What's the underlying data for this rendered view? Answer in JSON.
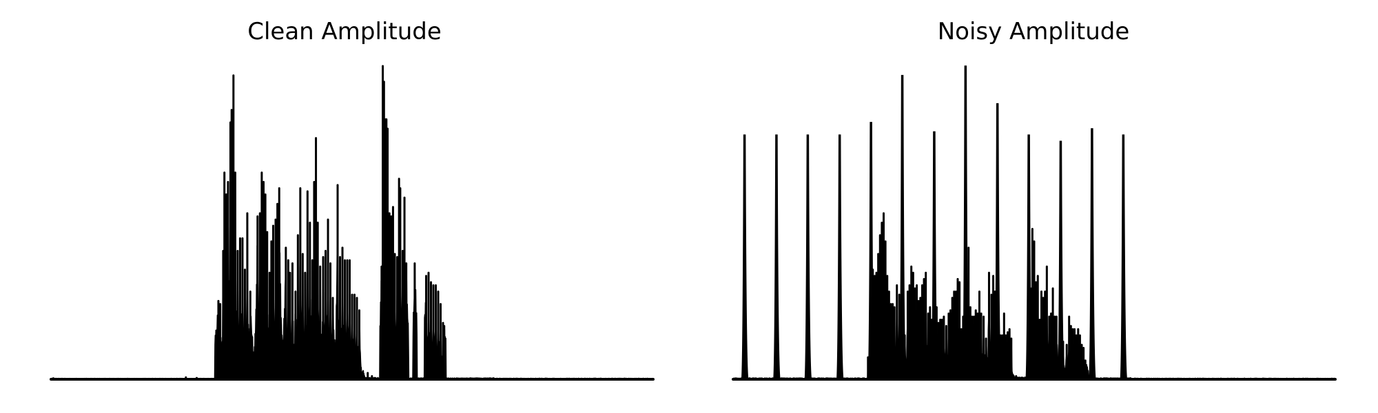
{
  "colors": {
    "line": "#000000",
    "background": "#ffffff"
  },
  "chart_data": [
    {
      "type": "line",
      "title": "Clean Amplitude",
      "xlabel": "",
      "ylabel": "",
      "axes_visible": false,
      "grid": false,
      "xlim": [
        0,
        1000
      ],
      "ylim": [
        0,
        1.0
      ],
      "series": [
        {
          "peaks": [
            [
              4,
              0.003
            ],
            [
              224,
              0.006
            ],
            [
              242,
              0.004
            ],
            [
              278,
              0.25
            ],
            [
              281,
              0.24
            ],
            [
              286,
              0.41
            ],
            [
              288,
              0.66
            ],
            [
              291,
              0.59
            ],
            [
              294,
              0.63
            ],
            [
              298,
              0.82
            ],
            [
              300,
              0.86
            ],
            [
              303,
              0.97
            ],
            [
              306,
              0.66
            ],
            [
              310,
              0.41
            ],
            [
              314,
              0.45
            ],
            [
              318,
              0.45
            ],
            [
              322,
              0.35
            ],
            [
              326,
              0.53
            ],
            [
              331,
              0.28
            ],
            [
              343,
              0.52
            ],
            [
              347,
              0.53
            ],
            [
              350,
              0.66
            ],
            [
              353,
              0.63
            ],
            [
              356,
              0.59
            ],
            [
              359,
              0.47
            ],
            [
              363,
              0.34
            ],
            [
              366,
              0.44
            ],
            [
              369,
              0.49
            ],
            [
              373,
              0.51
            ],
            [
              376,
              0.56
            ],
            [
              379,
              0.61
            ],
            [
              390,
              0.42
            ],
            [
              394,
              0.38
            ],
            [
              397,
              0.34
            ],
            [
              401,
              0.37
            ],
            [
              406,
              0.28
            ],
            [
              410,
              0.46
            ],
            [
              414,
              0.61
            ],
            [
              418,
              0.4
            ],
            [
              422,
              0.34
            ],
            [
              426,
              0.6
            ],
            [
              430,
              0.5
            ],
            [
              434,
              0.38
            ],
            [
              437,
              0.63
            ],
            [
              440,
              0.77
            ],
            [
              443,
              0.5
            ],
            [
              447,
              0.36
            ],
            [
              452,
              0.39
            ],
            [
              456,
              0.41
            ],
            [
              460,
              0.51
            ],
            [
              464,
              0.37
            ],
            [
              468,
              0.26
            ],
            [
              476,
              0.62
            ],
            [
              480,
              0.39
            ],
            [
              484,
              0.42
            ],
            [
              488,
              0.38
            ],
            [
              492,
              0.38
            ],
            [
              496,
              0.38
            ],
            [
              500,
              0.27
            ],
            [
              504,
              0.27
            ],
            [
              508,
              0.26
            ],
            [
              512,
              0.22
            ],
            [
              520,
              0.01
            ],
            [
              526,
              0.02
            ],
            [
              533,
              0.01
            ],
            [
              549,
              0.36
            ],
            [
              551,
              1.0
            ],
            [
              553,
              0.95
            ],
            [
              555,
              0.83
            ],
            [
              557,
              0.83
            ],
            [
              559,
              0.8
            ],
            [
              562,
              0.53
            ],
            [
              565,
              0.52
            ],
            [
              568,
              0.55
            ],
            [
              571,
              0.4
            ],
            [
              575,
              0.39
            ],
            [
              578,
              0.64
            ],
            [
              580,
              0.61
            ],
            [
              584,
              0.41
            ],
            [
              587,
              0.58
            ],
            [
              590,
              0.37
            ],
            [
              604,
              0.37
            ],
            [
              623,
              0.33
            ],
            [
              627,
              0.34
            ],
            [
              631,
              0.31
            ],
            [
              635,
              0.3
            ],
            [
              639,
              0.3
            ],
            [
              643,
              0.28
            ],
            [
              647,
              0.24
            ],
            [
              651,
              0.18
            ],
            [
              653,
              0.17
            ],
            [
              697,
              0.003
            ],
            [
              735,
              0.003
            ]
          ],
          "gaps": [
            [
              4,
              272,
              0.002
            ],
            [
              520,
              546,
              0.004
            ],
            [
              594,
              601,
              0.003
            ],
            [
              608,
              620,
              0.003
            ],
            [
              656,
              735,
              0.003
            ]
          ]
        }
      ]
    },
    {
      "type": "line",
      "title": "Noisy Amplitude",
      "xlabel": "",
      "ylabel": "",
      "axes_visible": false,
      "grid": false,
      "xlim": [
        0,
        1000
      ],
      "ylim": [
        0,
        1.0
      ],
      "series": [
        {
          "spikes": [
            [
              19,
              0.78
            ],
            [
              72,
              0.78
            ],
            [
              124,
              0.78
            ],
            [
              177,
              0.78
            ],
            [
              229,
              0.82
            ],
            [
              281,
              0.97
            ],
            [
              334,
              0.79
            ],
            [
              386,
              1.0
            ],
            [
              439,
              0.88
            ],
            [
              491,
              0.78
            ],
            [
              544,
              0.76
            ],
            [
              596,
              0.8
            ],
            [
              648,
              0.78
            ]
          ],
          "peaks": [
            [
              224,
              0.07
            ],
            [
              228,
              0.19
            ],
            [
              232,
              0.35
            ],
            [
              235,
              0.33
            ],
            [
              238,
              0.34
            ],
            [
              241,
              0.4
            ],
            [
              244,
              0.46
            ],
            [
              247,
              0.5
            ],
            [
              250,
              0.53
            ],
            [
              253,
              0.44
            ],
            [
              256,
              0.33
            ],
            [
              259,
              0.28
            ],
            [
              262,
              0.24
            ],
            [
              265,
              0.24
            ],
            [
              268,
              0.23
            ],
            [
              272,
              0.3
            ],
            [
              276,
              0.27
            ],
            [
              279,
              0.21
            ],
            [
              285,
              0.14
            ],
            [
              290,
              0.28
            ],
            [
              293,
              0.3
            ],
            [
              296,
              0.36
            ],
            [
              299,
              0.34
            ],
            [
              302,
              0.29
            ],
            [
              305,
              0.3
            ],
            [
              308,
              0.25
            ],
            [
              311,
              0.26
            ],
            [
              314,
              0.3
            ],
            [
              317,
              0.32
            ],
            [
              320,
              0.34
            ],
            [
              324,
              0.21
            ],
            [
              327,
              0.23
            ],
            [
              330,
              0.19
            ],
            [
              333,
              0.15
            ],
            [
              338,
              0.23
            ],
            [
              341,
              0.18
            ],
            [
              344,
              0.19
            ],
            [
              347,
              0.19
            ],
            [
              350,
              0.2
            ],
            [
              354,
              0.17
            ],
            [
              358,
              0.21
            ],
            [
              361,
              0.22
            ],
            [
              364,
              0.26
            ],
            [
              367,
              0.28
            ],
            [
              370,
              0.28
            ],
            [
              373,
              0.32
            ],
            [
              376,
              0.31
            ],
            [
              379,
              0.16
            ],
            [
              382,
              0.2
            ],
            [
              385,
              0.2
            ],
            [
              388,
              0.31
            ],
            [
              391,
              0.42
            ],
            [
              394,
              0.23
            ],
            [
              397,
              0.2
            ],
            [
              400,
              0.2
            ],
            [
              403,
              0.22
            ],
            [
              406,
              0.21
            ],
            [
              409,
              0.28
            ],
            [
              412,
              0.21
            ],
            [
              416,
              0.2
            ],
            [
              420,
              0.13
            ],
            [
              425,
              0.34
            ],
            [
              429,
              0.27
            ],
            [
              432,
              0.33
            ],
            [
              435,
              0.28
            ],
            [
              438,
              0.22
            ],
            [
              441,
              0.14
            ],
            [
              444,
              0.14
            ],
            [
              447,
              0.14
            ],
            [
              450,
              0.21
            ],
            [
              453,
              0.14
            ],
            [
              456,
              0.15
            ],
            [
              459,
              0.16
            ],
            [
              462,
              0.13
            ],
            [
              466,
              0.01
            ],
            [
              470,
              0.01
            ],
            [
              494,
              0.29
            ],
            [
              497,
              0.48
            ],
            [
              500,
              0.44
            ],
            [
              503,
              0.31
            ],
            [
              506,
              0.33
            ],
            [
              509,
              0.19
            ],
            [
              512,
              0.28
            ],
            [
              515,
              0.26
            ],
            [
              518,
              0.28
            ],
            [
              521,
              0.36
            ],
            [
              525,
              0.2
            ],
            [
              528,
              0.21
            ],
            [
              531,
              0.29
            ],
            [
              534,
              0.2
            ],
            [
              537,
              0.2
            ],
            [
              545,
              0.16
            ],
            [
              548,
              0.12
            ],
            [
              554,
              0.11
            ],
            [
              558,
              0.2
            ],
            [
              561,
              0.17
            ],
            [
              564,
              0.16
            ],
            [
              567,
              0.16
            ],
            [
              570,
              0.14
            ],
            [
              573,
              0.16
            ],
            [
              576,
              0.14
            ],
            [
              579,
              0.11
            ],
            [
              582,
              0.1
            ],
            [
              585,
              0.06
            ],
            [
              616,
              0.003
            ],
            [
              660,
              0.003
            ]
          ],
          "gaps": [
            [
              1,
              218,
              0.003
            ],
            [
              466,
              488,
              0.005
            ],
            [
              560,
              562,
              0.02
            ],
            [
              590,
              660,
              0.003
            ]
          ]
        }
      ]
    }
  ]
}
